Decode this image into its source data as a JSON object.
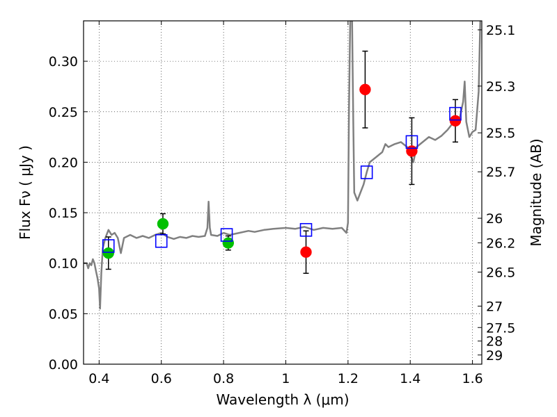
{
  "chart_data": {
    "type": "scatter",
    "xlabel": "Wavelength  λ (μm)",
    "ylabel": "Flux  Fν  ( μJy )",
    "ylabel_right": "Magnitude (AB)",
    "xlim": [
      0.35,
      1.63
    ],
    "ylim": [
      0.0,
      0.34
    ],
    "grid": true,
    "x_ticks": [
      {
        "value": 0.4,
        "label": "0.4"
      },
      {
        "value": 0.6,
        "label": "0.6"
      },
      {
        "value": 0.8,
        "label": "0.8"
      },
      {
        "value": 1.0,
        "label": "1"
      },
      {
        "value": 1.2,
        "label": "1.2"
      },
      {
        "value": 1.4,
        "label": "1.4"
      },
      {
        "value": 1.6,
        "label": "1.6"
      }
    ],
    "y_ticks": [
      {
        "value": 0.0,
        "label": "0.00"
      },
      {
        "value": 0.05,
        "label": "0.05"
      },
      {
        "value": 0.1,
        "label": "0.10"
      },
      {
        "value": 0.15,
        "label": "0.15"
      },
      {
        "value": 0.2,
        "label": "0.20"
      },
      {
        "value": 0.25,
        "label": "0.25"
      },
      {
        "value": 0.3,
        "label": "0.30"
      }
    ],
    "right_ticks": [
      {
        "flux": 0.3311,
        "label": "25.1"
      },
      {
        "flux": 0.2754,
        "label": "25.3"
      },
      {
        "flux": 0.2291,
        "label": "25.5"
      },
      {
        "flux": 0.1905,
        "label": "25.7"
      },
      {
        "flux": 0.1445,
        "label": "26"
      },
      {
        "flux": 0.1202,
        "label": "26.2"
      },
      {
        "flux": 0.0912,
        "label": "26.5"
      },
      {
        "flux": 0.0575,
        "label": "27"
      },
      {
        "flux": 0.0363,
        "label": "27.5"
      },
      {
        "flux": 0.0229,
        "label": "28"
      },
      {
        "flux": 0.0091,
        "label": "29"
      }
    ],
    "model_spectrum": {
      "color": "#808080",
      "points": [
        [
          0.35,
          0.1
        ],
        [
          0.36,
          0.1
        ],
        [
          0.365,
          0.095
        ],
        [
          0.37,
          0.1
        ],
        [
          0.375,
          0.098
        ],
        [
          0.38,
          0.104
        ],
        [
          0.385,
          0.1
        ],
        [
          0.39,
          0.092
        ],
        [
          0.395,
          0.085
        ],
        [
          0.4,
          0.075
        ],
        [
          0.403,
          0.055
        ],
        [
          0.407,
          0.09
        ],
        [
          0.412,
          0.115
        ],
        [
          0.42,
          0.125
        ],
        [
          0.43,
          0.133
        ],
        [
          0.44,
          0.128
        ],
        [
          0.45,
          0.13
        ],
        [
          0.46,
          0.125
        ],
        [
          0.47,
          0.11
        ],
        [
          0.48,
          0.125
        ],
        [
          0.5,
          0.128
        ],
        [
          0.52,
          0.125
        ],
        [
          0.54,
          0.127
        ],
        [
          0.56,
          0.125
        ],
        [
          0.58,
          0.128
        ],
        [
          0.6,
          0.13
        ],
        [
          0.62,
          0.126
        ],
        [
          0.64,
          0.124
        ],
        [
          0.66,
          0.126
        ],
        [
          0.68,
          0.125
        ],
        [
          0.7,
          0.127
        ],
        [
          0.72,
          0.126
        ],
        [
          0.74,
          0.127
        ],
        [
          0.748,
          0.135
        ],
        [
          0.752,
          0.161
        ],
        [
          0.756,
          0.135
        ],
        [
          0.76,
          0.128
        ],
        [
          0.78,
          0.127
        ],
        [
          0.8,
          0.13
        ],
        [
          0.82,
          0.128
        ],
        [
          0.85,
          0.13
        ],
        [
          0.88,
          0.132
        ],
        [
          0.9,
          0.131
        ],
        [
          0.93,
          0.133
        ],
        [
          0.96,
          0.134
        ],
        [
          1.0,
          0.135
        ],
        [
          1.03,
          0.134
        ],
        [
          1.06,
          0.136
        ],
        [
          1.09,
          0.133
        ],
        [
          1.12,
          0.135
        ],
        [
          1.15,
          0.134
        ],
        [
          1.18,
          0.135
        ],
        [
          1.195,
          0.13
        ],
        [
          1.2,
          0.14
        ],
        [
          1.203,
          0.25
        ],
        [
          1.207,
          0.34
        ],
        [
          1.213,
          0.34
        ],
        [
          1.217,
          0.24
        ],
        [
          1.22,
          0.17
        ],
        [
          1.23,
          0.162
        ],
        [
          1.24,
          0.17
        ],
        [
          1.25,
          0.178
        ],
        [
          1.26,
          0.19
        ],
        [
          1.27,
          0.2
        ],
        [
          1.29,
          0.205
        ],
        [
          1.31,
          0.21
        ],
        [
          1.32,
          0.218
        ],
        [
          1.33,
          0.215
        ],
        [
          1.35,
          0.218
        ],
        [
          1.37,
          0.22
        ],
        [
          1.39,
          0.215
        ],
        [
          1.4,
          0.208
        ],
        [
          1.41,
          0.2
        ],
        [
          1.42,
          0.215
        ],
        [
          1.44,
          0.22
        ],
        [
          1.46,
          0.225
        ],
        [
          1.48,
          0.222
        ],
        [
          1.5,
          0.226
        ],
        [
          1.52,
          0.232
        ],
        [
          1.53,
          0.236
        ],
        [
          1.54,
          0.24
        ],
        [
          1.55,
          0.242
        ],
        [
          1.56,
          0.245
        ],
        [
          1.57,
          0.26
        ],
        [
          1.575,
          0.28
        ],
        [
          1.58,
          0.24
        ],
        [
          1.59,
          0.225
        ],
        [
          1.6,
          0.23
        ],
        [
          1.61,
          0.232
        ],
        [
          1.62,
          0.27
        ],
        [
          1.625,
          0.34
        ]
      ]
    },
    "series": [
      {
        "marker": "circle",
        "color": "#00c000",
        "points": [
          {
            "x": 0.43,
            "y": 0.11,
            "yerr": 0.016
          },
          {
            "x": 0.605,
            "y": 0.139,
            "yerr": 0.01
          },
          {
            "x": 0.815,
            "y": 0.12,
            "yerr": 0.007
          }
        ]
      },
      {
        "marker": "circle",
        "color": "#ff0000",
        "points": [
          {
            "x": 1.065,
            "y": 0.111,
            "yerr": 0.021
          },
          {
            "x": 1.255,
            "y": 0.272,
            "yerr": 0.038
          },
          {
            "x": 1.405,
            "y": 0.211,
            "yerr": 0.033
          },
          {
            "x": 1.545,
            "y": 0.241,
            "yerr": 0.021
          }
        ]
      },
      {
        "marker": "square",
        "color": "#0000ff",
        "points": [
          {
            "x": 0.43,
            "y": 0.117
          },
          {
            "x": 0.6,
            "y": 0.122
          },
          {
            "x": 0.81,
            "y": 0.128
          },
          {
            "x": 1.065,
            "y": 0.133
          },
          {
            "x": 1.26,
            "y": 0.19
          },
          {
            "x": 1.405,
            "y": 0.22
          },
          {
            "x": 1.545,
            "y": 0.248
          }
        ]
      }
    ]
  }
}
